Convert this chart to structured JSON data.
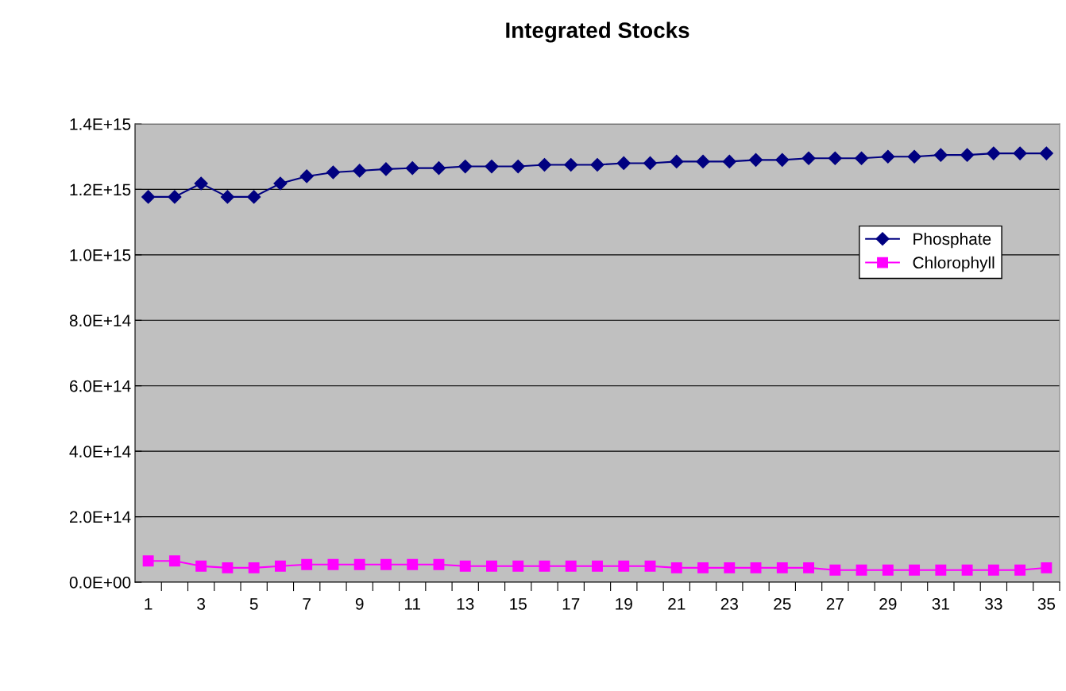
{
  "chart_data": {
    "type": "line",
    "title": "Integrated Stocks",
    "categories": [
      "1",
      null,
      "3",
      null,
      "5",
      null,
      "7",
      null,
      "9",
      null,
      "11",
      null,
      "13",
      null,
      "15",
      null,
      "17",
      null,
      "19",
      null,
      "21",
      null,
      "23",
      null,
      "25",
      null,
      "27",
      null,
      "29",
      null,
      "31",
      null,
      "33",
      null,
      "35"
    ],
    "series": [
      {
        "name": "Phosphate",
        "color": "#000080",
        "marker": "diamond",
        "values": [
          1177000000000000.0,
          1177000000000000.0,
          1218000000000000.0,
          1177000000000000.0,
          1177000000000000.0,
          1218000000000000.0,
          1240000000000000.0,
          1252000000000000.0,
          1257000000000000.0,
          1262000000000000.0,
          1265000000000000.0,
          1265000000000000.0,
          1270000000000000.0,
          1270000000000000.0,
          1270000000000000.0,
          1275000000000000.0,
          1275000000000000.0,
          1275000000000000.0,
          1280000000000000.0,
          1280000000000000.0,
          1285000000000000.0,
          1285000000000000.0,
          1285000000000000.0,
          1290000000000000.0,
          1290000000000000.0,
          1295000000000000.0,
          1295000000000000.0,
          1295000000000000.0,
          1300000000000000.0,
          1300000000000000.0,
          1305000000000000.0,
          1305000000000000.0,
          1310000000000000.0,
          1310000000000000.0,
          1310000000000000.0
        ]
      },
      {
        "name": "Chlorophyll",
        "color": "#ff00ff",
        "marker": "square",
        "values": [
          65000000000000.0,
          65000000000000.0,
          49000000000000.0,
          44000000000000.0,
          44000000000000.0,
          49000000000000.0,
          54000000000000.0,
          54000000000000.0,
          54000000000000.0,
          54000000000000.0,
          54000000000000.0,
          54000000000000.0,
          49000000000000.0,
          49000000000000.0,
          49000000000000.0,
          49000000000000.0,
          49000000000000.0,
          49000000000000.0,
          49000000000000.0,
          49000000000000.0,
          44000000000000.0,
          44000000000000.0,
          44000000000000.0,
          44000000000000.0,
          44000000000000.0,
          44000000000000.0,
          37000000000000.0,
          37000000000000.0,
          37000000000000.0,
          37000000000000.0,
          37000000000000.0,
          37000000000000.0,
          37000000000000.0,
          37000000000000.0,
          44000000000000.0
        ]
      }
    ],
    "ylim": [
      0,
      1400000000000000.0
    ],
    "yticks": [
      {
        "value": 0,
        "label": "0.0E+00"
      },
      {
        "value": 200000000000000.0,
        "label": "2.0E+14"
      },
      {
        "value": 400000000000000.0,
        "label": "4.0E+14"
      },
      {
        "value": 600000000000000.0,
        "label": "6.0E+14"
      },
      {
        "value": 800000000000000.0,
        "label": "8.0E+14"
      },
      {
        "value": 1000000000000000.0,
        "label": "1.0E+15"
      },
      {
        "value": 1200000000000000.0,
        "label": "1.2E+15"
      },
      {
        "value": 1400000000000000.0,
        "label": "1.4E+15"
      }
    ],
    "grid": "y",
    "legend": "right",
    "line_style": "solid"
  }
}
